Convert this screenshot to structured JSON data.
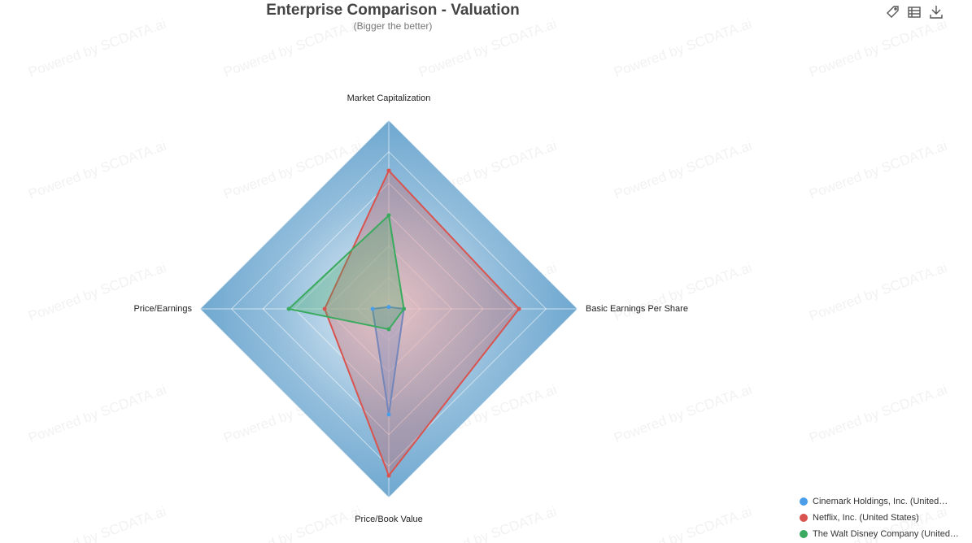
{
  "chart_data": {
    "type": "radar",
    "title": "Enterprise Comparison - Valuation",
    "subtitle": "(Bigger the better)",
    "watermark": "Powered by SCDATA.ai",
    "categories": [
      "Market Capitalization",
      "Basic Earnings Per Share",
      "Price/Book Value",
      "Price/Earnings"
    ],
    "ylim": [
      0,
      100
    ],
    "rings": 6,
    "background_color": "#6fa8d0",
    "legend": "bottom-right",
    "series": [
      {
        "name": "Cinemark Holdings, Inc. (United…",
        "color": "#4a9de8",
        "values": [
          1,
          8,
          56,
          8.6
        ]
      },
      {
        "name": "Netflix, Inc. (United States)",
        "color": "#d9534f",
        "values": [
          73.3,
          69,
          88.4,
          34
        ]
      },
      {
        "name": "The Walt Disney Company (United…",
        "color": "#3aaa5e",
        "values": [
          49.6,
          8,
          10.8,
          53
        ]
      }
    ]
  }
}
